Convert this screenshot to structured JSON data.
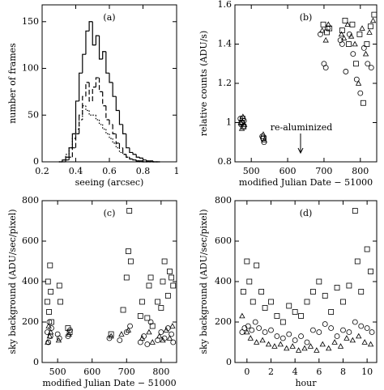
{
  "chart_data": [
    {
      "type": "histogram",
      "title": "(a)",
      "x_label": "seeing (arcsec)",
      "y_label": "number of frames",
      "xlim": [
        0.2,
        1.0
      ],
      "xticks": [
        0.2,
        0.4,
        0.6,
        0.8,
        1
      ],
      "ylim": [
        0,
        168
      ],
      "yticks": [
        0,
        50,
        100,
        150
      ],
      "bins": [
        0.3,
        0.32,
        0.34,
        0.36,
        0.38,
        0.4,
        0.42,
        0.44,
        0.46,
        0.48,
        0.5,
        0.52,
        0.54,
        0.56,
        0.58,
        0.6,
        0.62,
        0.64,
        0.66,
        0.68,
        0.7,
        0.72,
        0.74,
        0.76,
        0.78,
        0.8,
        0.82,
        0.84,
        0.86,
        0.88,
        0.9
      ],
      "series": [
        {
          "color": "#000000",
          "dash": "solid",
          "values": [
            0,
            2,
            5,
            15,
            30,
            65,
            95,
            115,
            140,
            150,
            125,
            135,
            110,
            118,
            95,
            85,
            70,
            55,
            40,
            30,
            15,
            10,
            8,
            5,
            4,
            2,
            1,
            1,
            0,
            0
          ]
        },
        {
          "color": "#000000",
          "dash": "dashed",
          "values": [
            0,
            0,
            2,
            5,
            15,
            30,
            50,
            70,
            85,
            65,
            80,
            90,
            75,
            60,
            45,
            40,
            30,
            20,
            15,
            8,
            5,
            3,
            2,
            1,
            1,
            0,
            0,
            0,
            0,
            0
          ]
        },
        {
          "color": "#000000",
          "dash": "dotted",
          "values": [
            0,
            2,
            8,
            15,
            25,
            35,
            45,
            60,
            55,
            50,
            50,
            45,
            40,
            35,
            30,
            25,
            20,
            15,
            10,
            8,
            5,
            3,
            2,
            1,
            0,
            0,
            0,
            0,
            0,
            0
          ]
        }
      ]
    },
    {
      "type": "scatter",
      "title": "(b)",
      "x_label": "modified Julian Date − 51000",
      "y_label": "relative counts (ADU/s)",
      "annotation": "re-aluminized",
      "xlim": [
        455,
        845
      ],
      "xticks": [
        500,
        600,
        700,
        800
      ],
      "ylim": [
        0.8,
        1.6
      ],
      "yticks": [
        0.8,
        1,
        1.2,
        1.4,
        1.6
      ],
      "series": [
        {
          "marker": "circle",
          "color": "#000000",
          "x": [
            470,
            472,
            475,
            478,
            480,
            530,
            532,
            535,
            690,
            700,
            705,
            710,
            745,
            750,
            760,
            770,
            780,
            790,
            800,
            810,
            820,
            830
          ],
          "values": [
            1.02,
            0.99,
            1.0,
            0.98,
            1.01,
            0.93,
            0.92,
            0.9,
            1.45,
            1.3,
            1.28,
            1.48,
            1.42,
            1.4,
            1.26,
            1.45,
            1.35,
            1.22,
            1.15,
            1.38,
            1.3,
            1.28
          ]
        },
        {
          "marker": "triangle",
          "color": "#000000",
          "x": [
            471,
            474,
            477,
            481,
            533,
            536,
            695,
            705,
            712,
            748,
            755,
            765,
            775,
            785,
            795,
            805,
            815,
            825,
            835
          ],
          "values": [
            1.0,
            0.97,
            1.03,
            0.99,
            0.94,
            0.91,
            1.47,
            1.42,
            1.5,
            1.45,
            1.43,
            1.5,
            1.44,
            1.4,
            1.2,
            1.48,
            1.35,
            1.46,
            1.52
          ]
        },
        {
          "marker": "square",
          "color": "#000000",
          "x": [
            473,
            476,
            479,
            534,
            698,
            708,
            715,
            750,
            758,
            768,
            778,
            788,
            798,
            808,
            818,
            828,
            838
          ],
          "values": [
            1.0,
            1.02,
            0.98,
            0.92,
            1.5,
            1.46,
            1.48,
            1.47,
            1.52,
            1.4,
            1.5,
            1.3,
            1.45,
            1.1,
            1.4,
            1.49,
            1.55
          ]
        }
      ]
    },
    {
      "type": "scatter",
      "title": "(c)",
      "x_label": "modified Julian Date − 51000",
      "y_label": "sky background (ADU/sec/pixel)",
      "xlim": [
        455,
        845
      ],
      "xticks": [
        500,
        600,
        700,
        800
      ],
      "ylim": [
        0,
        800
      ],
      "yticks": [
        0,
        200,
        400,
        600,
        800
      ],
      "series": [
        {
          "marker": "square",
          "color": "#000000",
          "x": [
            470,
            472,
            475,
            478,
            480,
            482,
            505,
            508,
            530,
            535,
            655,
            690,
            700,
            705,
            708,
            712,
            740,
            745,
            760,
            765,
            770,
            775,
            790,
            800,
            805,
            810,
            820,
            825,
            830,
            835
          ],
          "values": [
            300,
            400,
            250,
            480,
            350,
            200,
            380,
            300,
            170,
            150,
            140,
            260,
            420,
            550,
            750,
            500,
            230,
            300,
            220,
            380,
            420,
            180,
            300,
            270,
            400,
            500,
            330,
            450,
            420,
            380
          ]
        },
        {
          "marker": "circle",
          "color": "#000000",
          "x": [
            470,
            473,
            476,
            479,
            482,
            500,
            505,
            530,
            536,
            650,
            680,
            700,
            710,
            740,
            750,
            760,
            770,
            790,
            800,
            810,
            820,
            830,
            835
          ],
          "values": [
            150,
            100,
            200,
            130,
            170,
            140,
            120,
            130,
            160,
            120,
            110,
            150,
            180,
            100,
            130,
            90,
            200,
            110,
            150,
            120,
            170,
            140,
            100
          ]
        },
        {
          "marker": "triangle",
          "color": "#000000",
          "x": [
            471,
            474,
            477,
            480,
            503,
            533,
            655,
            685,
            705,
            745,
            765,
            775,
            795,
            805,
            815,
            825,
            833
          ],
          "values": [
            100,
            180,
            130,
            150,
            110,
            140,
            130,
            140,
            160,
            120,
            150,
            100,
            130,
            110,
            160,
            120,
            180
          ]
        }
      ]
    },
    {
      "type": "scatter",
      "title": "(d)",
      "x_label": "hour",
      "y_label": "sky background (ADU/sec/pixel)",
      "xlim": [
        -1,
        10.8
      ],
      "xticks": [
        0,
        2,
        4,
        6,
        8,
        10
      ],
      "ylim": [
        0,
        800
      ],
      "yticks": [
        0,
        200,
        400,
        600,
        800
      ],
      "series": [
        {
          "marker": "square",
          "color": "#000000",
          "x": [
            -0.3,
            0,
            0.2,
            0.5,
            0.8,
            1.2,
            1.5,
            2,
            2.5,
            3,
            3.5,
            4,
            4.5,
            5,
            5.5,
            6,
            6.5,
            7,
            7.5,
            8,
            8.5,
            9,
            9.2,
            9.5,
            10,
            10.3
          ],
          "values": [
            350,
            500,
            400,
            300,
            480,
            350,
            270,
            300,
            230,
            200,
            280,
            250,
            230,
            300,
            350,
            400,
            330,
            250,
            370,
            300,
            380,
            750,
            500,
            350,
            560,
            450
          ]
        },
        {
          "marker": "circle",
          "color": "#000000",
          "x": [
            -0.4,
            -0.2,
            0.1,
            0.4,
            0.7,
            1,
            1.5,
            2,
            2.5,
            3,
            3.5,
            4,
            4.5,
            5,
            5.5,
            6,
            6.5,
            7,
            7.5,
            8,
            8.5,
            9,
            9.5,
            10,
            10.4
          ],
          "values": [
            150,
            170,
            180,
            160,
            200,
            170,
            150,
            160,
            130,
            120,
            140,
            110,
            130,
            100,
            160,
            150,
            190,
            170,
            130,
            160,
            150,
            200,
            180,
            170,
            150
          ]
        },
        {
          "marker": "triangle",
          "color": "#000000",
          "x": [
            -0.4,
            0,
            0.3,
            0.8,
            1.3,
            1.8,
            2.3,
            2.8,
            3.3,
            3.8,
            4.3,
            4.8,
            5.3,
            5.8,
            6.3,
            6.8,
            7.3,
            7.8,
            8.3,
            8.8,
            9.3,
            9.8,
            10.3
          ],
          "values": [
            230,
            150,
            120,
            100,
            110,
            90,
            80,
            90,
            70,
            80,
            60,
            70,
            80,
            60,
            90,
            70,
            100,
            80,
            120,
            110,
            130,
            100,
            90
          ]
        }
      ]
    }
  ]
}
